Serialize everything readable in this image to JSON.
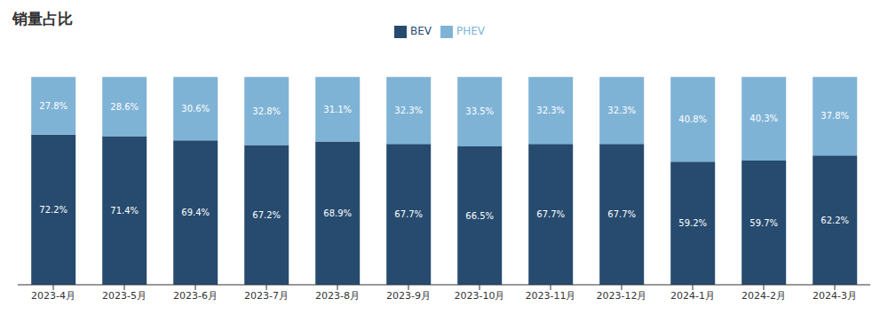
{
  "chart_data": {
    "type": "bar",
    "title": "销量占比",
    "categories": [
      "2023-4月",
      "2023-5月",
      "2023-6月",
      "2023-7月",
      "2023-8月",
      "2023-9月",
      "2023-10月",
      "2023-11月",
      "2023-12月",
      "2024-1月",
      "2024-2月",
      "2024-3月"
    ],
    "series": [
      {
        "name": "BEV",
        "color": "#264b6f",
        "values": [
          72.2,
          71.4,
          69.4,
          67.2,
          68.9,
          67.7,
          66.5,
          67.7,
          67.7,
          59.2,
          59.7,
          62.2
        ],
        "value_labels": [
          "72.2%",
          "71.4%",
          "69.4%",
          "67.2%",
          "68.9%",
          "67.7%",
          "66.5%",
          "67.7%",
          "67.7%",
          "59.2%",
          "59.7%",
          "62.2%"
        ]
      },
      {
        "name": "PHEV",
        "color": "#7fb3d6",
        "values": [
          27.8,
          28.6,
          30.6,
          32.8,
          31.1,
          32.3,
          33.5,
          32.3,
          32.3,
          40.8,
          40.3,
          37.8
        ],
        "value_labels": [
          "27.8%",
          "28.6%",
          "30.6%",
          "32.8%",
          "31.1%",
          "32.3%",
          "33.5%",
          "32.3%",
          "32.3%",
          "40.8%",
          "40.3%",
          "37.8%"
        ]
      }
    ],
    "ylim": [
      0,
      100
    ],
    "stacked": true,
    "data_labels": true,
    "legend": "top",
    "tick_labels": "x",
    "grid": false
  }
}
